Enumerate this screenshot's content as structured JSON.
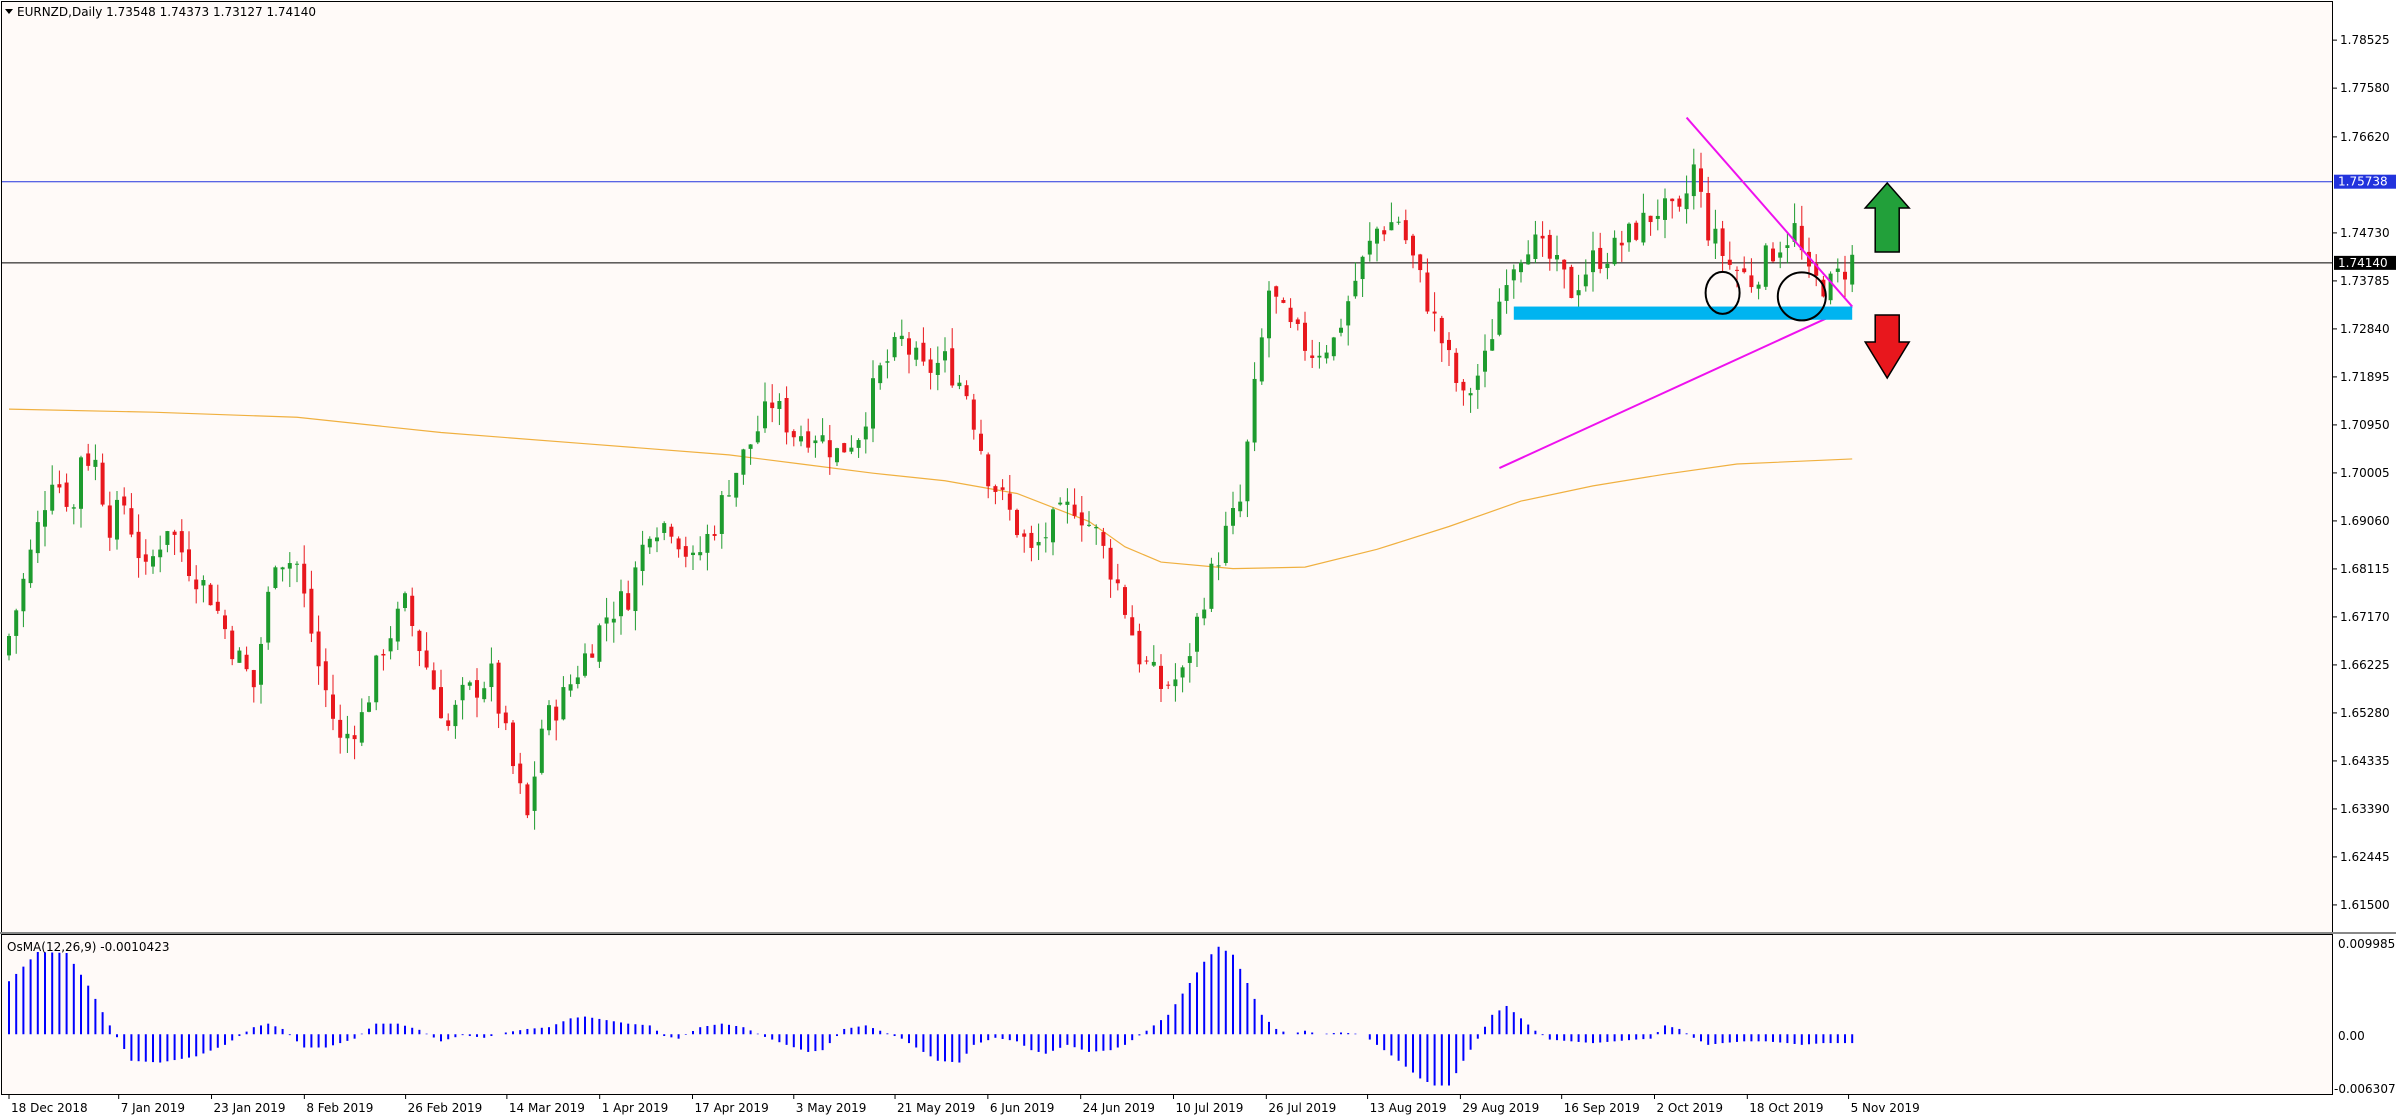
{
  "main": {
    "symbol_line": "EURNZD,Daily  1.73548 1.74373 1.73127 1.74140",
    "price_tag_current": "1.74140",
    "price_tag_level": "1.75738"
  },
  "osma": {
    "label": "OsMA(12,26,9) -0.0010423",
    "scale": [
      "0.0099858",
      "0.00",
      "-0.0063072"
    ]
  },
  "colors": {
    "bull": "#1e9b2e",
    "bear": "#e8171d",
    "histogram": "#0000ff",
    "ma": "#f0b040",
    "resistance_line": "#2233dd",
    "current_line": "#000000",
    "triangle": "#ee11ee",
    "support_zone": "#00b4f0",
    "arrow_up": "#22a03a",
    "arrow_down": "#e8171d",
    "background": "#fffaf8"
  },
  "annotations": [
    "arrow-up-icon",
    "arrow-down-icon",
    "circle-marker",
    "circle-marker"
  ],
  "chart_data": {
    "type": "candlestick",
    "ylim": [
      1.61026,
      1.79
    ],
    "yticks": [
      "1.78525",
      "1.77580",
      "1.76620",
      "1.74730",
      "1.73785",
      "1.72840",
      "1.71895",
      "1.70950",
      "1.70005",
      "1.69060",
      "1.68115",
      "1.67170",
      "1.66225",
      "1.65280",
      "1.64335",
      "1.63390",
      "1.62445",
      "1.61500"
    ],
    "xticks": [
      "18 Dec 2018",
      "7 Jan 2019",
      "23 Jan 2019",
      "8 Feb 2019",
      "26 Feb 2019",
      "14 Mar 2019",
      "1 Apr 2019",
      "17 Apr 2019",
      "3 May 2019",
      "21 May 2019",
      "6 Jun 2019",
      "24 Jun 2019",
      "10 Jul 2019",
      "26 Jul 2019",
      "13 Aug 2019",
      "29 Aug 2019",
      "16 Sep 2019",
      "2 Oct 2019",
      "18 Oct 2019",
      "5 Nov 2019"
    ],
    "horizontal_levels": [
      1.75738,
      1.7414
    ],
    "close_anchors": [
      [
        0,
        1.668
      ],
      [
        3,
        1.684
      ],
      [
        6,
        1.7
      ],
      [
        9,
        1.693
      ],
      [
        10,
        1.704
      ],
      [
        12,
        1.702
      ],
      [
        14,
        1.69
      ],
      [
        16,
        1.694
      ],
      [
        19,
        1.68
      ],
      [
        22,
        1.69
      ],
      [
        25,
        1.682
      ],
      [
        28,
        1.676
      ],
      [
        31,
        1.666
      ],
      [
        34,
        1.658
      ],
      [
        37,
        1.684
      ],
      [
        40,
        1.682
      ],
      [
        43,
        1.662
      ],
      [
        46,
        1.647
      ],
      [
        49,
        1.652
      ],
      [
        52,
        1.666
      ],
      [
        55,
        1.674
      ],
      [
        58,
        1.662
      ],
      [
        61,
        1.65
      ],
      [
        63,
        1.656
      ],
      [
        67,
        1.66
      ],
      [
        70,
        1.642
      ],
      [
        72,
        1.632
      ],
      [
        74,
        1.65
      ],
      [
        77,
        1.656
      ],
      [
        80,
        1.664
      ],
      [
        83,
        1.672
      ],
      [
        86,
        1.676
      ],
      [
        89,
        1.69
      ],
      [
        92,
        1.69
      ],
      [
        95,
        1.682
      ],
      [
        98,
        1.69
      ],
      [
        100,
        1.698
      ],
      [
        103,
        1.706
      ],
      [
        106,
        1.714
      ],
      [
        109,
        1.708
      ],
      [
        112,
        1.708
      ],
      [
        115,
        1.704
      ],
      [
        118,
        1.708
      ],
      [
        121,
        1.72
      ],
      [
        124,
        1.726
      ],
      [
        127,
        1.72
      ],
      [
        130,
        1.722
      ],
      [
        133,
        1.716
      ],
      [
        136,
        1.7
      ],
      [
        139,
        1.692
      ],
      [
        142,
        1.684
      ],
      [
        145,
        1.69
      ],
      [
        148,
        1.694
      ],
      [
        151,
        1.688
      ],
      [
        154,
        1.678
      ],
      [
        157,
        1.664
      ],
      [
        160,
        1.658
      ],
      [
        163,
        1.66
      ],
      [
        166,
        1.676
      ],
      [
        169,
        1.688
      ],
      [
        171,
        1.694
      ],
      [
        173,
        1.716
      ],
      [
        175,
        1.736
      ],
      [
        178,
        1.728
      ],
      [
        181,
        1.724
      ],
      [
        184,
        1.726
      ],
      [
        187,
        1.738
      ],
      [
        190,
        1.748
      ],
      [
        193,
        1.75
      ],
      [
        196,
        1.738
      ],
      [
        199,
        1.726
      ],
      [
        202,
        1.714
      ],
      [
        205,
        1.722
      ],
      [
        208,
        1.74
      ],
      [
        211,
        1.746
      ],
      [
        214,
        1.742
      ],
      [
        217,
        1.736
      ],
      [
        220,
        1.742
      ],
      [
        223,
        1.744
      ],
      [
        226,
        1.748
      ],
      [
        229,
        1.752
      ],
      [
        232,
        1.75
      ],
      [
        234,
        1.76
      ],
      [
        236,
        1.748
      ],
      [
        239,
        1.741
      ],
      [
        242,
        1.738
      ],
      [
        245,
        1.744
      ],
      [
        248,
        1.748
      ],
      [
        250,
        1.738
      ],
      [
        253,
        1.737
      ],
      [
        256,
        1.742
      ]
    ],
    "osma": {
      "ylim": [
        -0.0063072,
        0.0099858
      ],
      "anchors": [
        [
          0,
          0.006
        ],
        [
          4,
          0.0093
        ],
        [
          8,
          0.0092
        ],
        [
          11,
          0.0055
        ],
        [
          14,
          0.001
        ],
        [
          17,
          -0.003
        ],
        [
          21,
          -0.0032
        ],
        [
          26,
          -0.0025
        ],
        [
          30,
          -0.0012
        ],
        [
          34,
          0.0008
        ],
        [
          36,
          0.0012
        ],
        [
          38,
          0.0006
        ],
        [
          41,
          -0.0015
        ],
        [
          44,
          -0.0015
        ],
        [
          48,
          -0.0005
        ],
        [
          51,
          0.0012
        ],
        [
          54,
          0.0012
        ],
        [
          57,
          0.0005
        ],
        [
          60,
          -0.0008
        ],
        [
          63,
          -0.0001
        ],
        [
          66,
          -0.0004
        ],
        [
          69,
          0.0002
        ],
        [
          72,
          0.0006
        ],
        [
          75,
          0.0008
        ],
        [
          78,
          0.0018
        ],
        [
          80,
          0.002
        ],
        [
          83,
          0.0016
        ],
        [
          86,
          0.0012
        ],
        [
          89,
          0.001
        ],
        [
          91,
          -0.0002
        ],
        [
          93,
          -0.0005
        ],
        [
          96,
          0.0008
        ],
        [
          99,
          0.0012
        ],
        [
          102,
          0.0008
        ],
        [
          105,
          -0.0003
        ],
        [
          108,
          -0.0012
        ],
        [
          111,
          -0.002
        ],
        [
          113,
          -0.0018
        ],
        [
          116,
          0.0006
        ],
        [
          119,
          0.001
        ],
        [
          121,
          0.0004
        ],
        [
          124,
          -0.0005
        ],
        [
          127,
          -0.002
        ],
        [
          129,
          -0.003
        ],
        [
          132,
          -0.0032
        ],
        [
          134,
          -0.0012
        ],
        [
          137,
          -0.0004
        ],
        [
          140,
          -0.0008
        ],
        [
          142,
          -0.0018
        ],
        [
          144,
          -0.0022
        ],
        [
          147,
          -0.0012
        ],
        [
          150,
          -0.002
        ],
        [
          153,
          -0.0018
        ],
        [
          155,
          -0.0012
        ],
        [
          158,
          0.0004
        ],
        [
          161,
          0.0022
        ],
        [
          164,
          0.0058
        ],
        [
          166,
          0.0082
        ],
        [
          168,
          0.0099
        ],
        [
          170,
          0.009
        ],
        [
          172,
          0.0058
        ],
        [
          174,
          0.0022
        ],
        [
          176,
          0.0006
        ],
        [
          178,
          0.0
        ],
        [
          180,
          0.0004
        ],
        [
          182,
          0.0
        ],
        [
          185,
          0.0002
        ],
        [
          188,
          0.0
        ],
        [
          190,
          -0.0012
        ],
        [
          193,
          -0.003
        ],
        [
          196,
          -0.005
        ],
        [
          198,
          -0.0058
        ],
        [
          200,
          -0.0058
        ],
        [
          202,
          -0.003
        ],
        [
          204,
          -0.0005
        ],
        [
          206,
          0.0022
        ],
        [
          208,
          0.0032
        ],
        [
          210,
          0.0018
        ],
        [
          212,
          0.0004
        ],
        [
          214,
          -0.0006
        ],
        [
          217,
          -0.0008
        ],
        [
          220,
          -0.001
        ],
        [
          223,
          -0.0008
        ],
        [
          226,
          -0.0006
        ],
        [
          228,
          -0.0005
        ],
        [
          230,
          0.001
        ],
        [
          232,
          0.0006
        ],
        [
          234,
          -0.0004
        ],
        [
          236,
          -0.0012
        ],
        [
          238,
          -0.001
        ],
        [
          241,
          -0.0008
        ],
        [
          244,
          -0.0008
        ],
        [
          247,
          -0.001
        ],
        [
          249,
          -0.0012
        ],
        [
          252,
          -0.001
        ],
        [
          256,
          -0.001
        ]
      ]
    },
    "moving_average": [
      [
        0,
        1.7126
      ],
      [
        20,
        1.712
      ],
      [
        40,
        1.711
      ],
      [
        60,
        1.708
      ],
      [
        80,
        1.7058
      ],
      [
        100,
        1.7036
      ],
      [
        110,
        1.7018
      ],
      [
        120,
        1.7
      ],
      [
        130,
        1.6985
      ],
      [
        140,
        1.696
      ],
      [
        150,
        1.6905
      ],
      [
        155,
        1.6855
      ],
      [
        160,
        1.6825
      ],
      [
        170,
        1.6812
      ],
      [
        180,
        1.6815
      ],
      [
        190,
        1.685
      ],
      [
        200,
        1.6895
      ],
      [
        210,
        1.6945
      ],
      [
        220,
        1.6975
      ],
      [
        230,
        1.6998
      ],
      [
        240,
        1.7018
      ],
      [
        256,
        1.7028
      ]
    ],
    "triangle": {
      "upper": [
        [
          233,
          1.77
        ],
        [
          256,
          1.7328
        ]
      ],
      "lower": [
        [
          207,
          1.701
        ],
        [
          256,
          1.7328
        ]
      ]
    },
    "support_zone": {
      "from": 209,
      "to": 256,
      "top": 1.7328,
      "bottom": 1.7302
    },
    "circles": [
      {
        "at": 238,
        "price": 1.7355
      },
      {
        "at": 249,
        "price": 1.7348
      }
    ]
  }
}
